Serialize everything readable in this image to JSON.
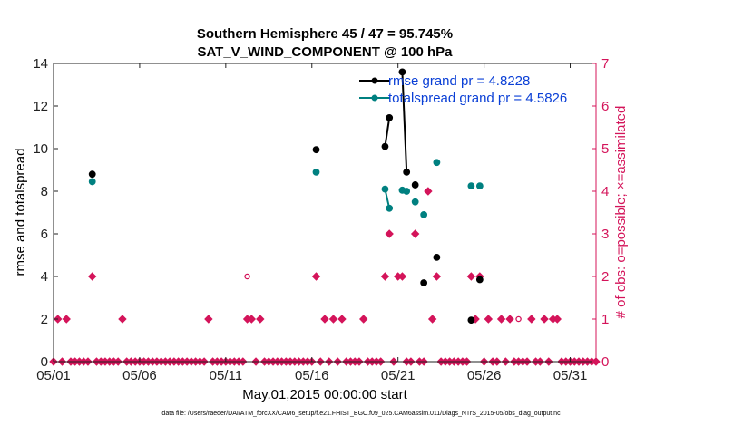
{
  "chart_data": {
    "type": "scatter",
    "title": [
      "Southern Hemisphere 45 / 47 = 95.745%",
      "SAT_V_WIND_COMPONENT @ 100 hPa"
    ],
    "xlabel": "May.01,2015 00:00:00 start",
    "ylabel_left": "rmse and totalspread",
    "ylabel_right": "# of obs: o=possible; ×=assimilated",
    "footnote": "data file: /Users/raeder/DAI/ATM_forcXX/CAM6_setup/f.e21.FHIST_BGC.f09_025.CAM6assim.011/Diags_NTrS_2015-05/obs_diag_output.nc",
    "xlim": [
      0,
      31.5
    ],
    "ylim_left": [
      0,
      14
    ],
    "ylim_right": [
      0,
      7
    ],
    "x_ticks": [
      {
        "value": 0,
        "label": "05/01"
      },
      {
        "value": 5,
        "label": "05/06"
      },
      {
        "value": 10,
        "label": "05/11"
      },
      {
        "value": 15,
        "label": "05/16"
      },
      {
        "value": 20,
        "label": "05/21"
      },
      {
        "value": 25,
        "label": "05/26"
      },
      {
        "value": 30,
        "label": "05/31"
      }
    ],
    "y_ticks_left": [
      "0",
      "2",
      "4",
      "6",
      "8",
      "10",
      "12",
      "14"
    ],
    "y_ticks_right": [
      "0",
      "1",
      "2",
      "3",
      "4",
      "5",
      "6",
      "7"
    ],
    "colors": {
      "rmse": "#000000",
      "spread": "#008080",
      "obs": "#d4145a",
      "legend_text": "#0a3fd6"
    },
    "legend": [
      {
        "name": "rmse grand pr = 4.8228",
        "series": "rmse"
      },
      {
        "name": "totalspread grand pr = 4.5826",
        "series": "spread"
      }
    ],
    "series": [
      {
        "name": "rmse",
        "axis": "left",
        "points": [
          [
            2.25,
            8.8
          ],
          [
            15.25,
            9.95
          ],
          [
            19.25,
            10.1
          ],
          [
            19.5,
            11.45
          ],
          [
            20.25,
            13.6
          ],
          [
            20.5,
            8.9
          ],
          [
            21.0,
            8.3
          ],
          [
            21.5,
            3.7
          ],
          [
            22.25,
            4.9
          ],
          [
            24.25,
            1.95
          ],
          [
            24.75,
            3.85
          ]
        ],
        "segments": [
          [
            [
              19.25,
              10.1
            ],
            [
              19.5,
              11.45
            ]
          ],
          [
            [
              20.25,
              13.6
            ],
            [
              20.5,
              8.9
            ]
          ]
        ]
      },
      {
        "name": "totalspread",
        "axis": "left",
        "points": [
          [
            2.25,
            8.45
          ],
          [
            15.25,
            8.9
          ],
          [
            19.25,
            8.1
          ],
          [
            19.5,
            7.2
          ],
          [
            20.25,
            8.05
          ],
          [
            20.5,
            8.0
          ],
          [
            21.0,
            7.5
          ],
          [
            21.5,
            6.9
          ],
          [
            22.25,
            9.35
          ],
          [
            24.25,
            8.25
          ],
          [
            24.75,
            8.25
          ]
        ],
        "segments": [
          [
            [
              19.25,
              8.1
            ],
            [
              19.5,
              7.2
            ]
          ],
          [
            [
              20.25,
              8.05
            ],
            [
              20.5,
              8.0
            ]
          ]
        ]
      },
      {
        "name": "obs assimilated",
        "axis": "right",
        "marker": "x",
        "points": [
          [
            0,
            0
          ],
          [
            0.25,
            1
          ],
          [
            0.5,
            0
          ],
          [
            0.75,
            1
          ],
          [
            1,
            0
          ],
          [
            1.25,
            0
          ],
          [
            1.5,
            0
          ],
          [
            1.75,
            0
          ],
          [
            2,
            0
          ],
          [
            2.25,
            2
          ],
          [
            2.5,
            0
          ],
          [
            2.75,
            0
          ],
          [
            3,
            0
          ],
          [
            3.25,
            0
          ],
          [
            3.5,
            0
          ],
          [
            3.75,
            0
          ],
          [
            4,
            1
          ],
          [
            4.25,
            0
          ],
          [
            4.5,
            0
          ],
          [
            4.75,
            0
          ],
          [
            5,
            0
          ],
          [
            5.25,
            0
          ],
          [
            5.5,
            0
          ],
          [
            5.75,
            0
          ],
          [
            6,
            0
          ],
          [
            6.25,
            0
          ],
          [
            6.5,
            0
          ],
          [
            6.75,
            0
          ],
          [
            7,
            0
          ],
          [
            7.25,
            0
          ],
          [
            7.5,
            0
          ],
          [
            7.75,
            0
          ],
          [
            8,
            0
          ],
          [
            8.25,
            0
          ],
          [
            8.5,
            0
          ],
          [
            8.75,
            0
          ],
          [
            9,
            1
          ],
          [
            9.25,
            0
          ],
          [
            9.5,
            0
          ],
          [
            9.75,
            0
          ],
          [
            10,
            0
          ],
          [
            10.25,
            0
          ],
          [
            10.5,
            0
          ],
          [
            10.75,
            0
          ],
          [
            11,
            0
          ],
          [
            11.25,
            1
          ],
          [
            11.5,
            1
          ],
          [
            11.75,
            0
          ],
          [
            12,
            1
          ],
          [
            12.25,
            0
          ],
          [
            12.5,
            0
          ],
          [
            12.75,
            0
          ],
          [
            13,
            0
          ],
          [
            13.25,
            0
          ],
          [
            13.5,
            0
          ],
          [
            13.75,
            0
          ],
          [
            14,
            0
          ],
          [
            14.25,
            0
          ],
          [
            14.5,
            0
          ],
          [
            14.75,
            0
          ],
          [
            15,
            0
          ],
          [
            15.25,
            2
          ],
          [
            15.5,
            0
          ],
          [
            15.75,
            1
          ],
          [
            16,
            0
          ],
          [
            16.25,
            1
          ],
          [
            16.5,
            0
          ],
          [
            16.75,
            1
          ],
          [
            17,
            0
          ],
          [
            17.25,
            0
          ],
          [
            17.5,
            0
          ],
          [
            17.75,
            0
          ],
          [
            18,
            1
          ],
          [
            18.25,
            0
          ],
          [
            18.5,
            0
          ],
          [
            18.75,
            0
          ],
          [
            19,
            0
          ],
          [
            19.25,
            2
          ],
          [
            19.5,
            3
          ],
          [
            19.75,
            0
          ],
          [
            20,
            2
          ],
          [
            20.25,
            2
          ],
          [
            20.5,
            0
          ],
          [
            20.75,
            0
          ],
          [
            21,
            3
          ],
          [
            21.25,
            0
          ],
          [
            21.5,
            0
          ],
          [
            21.75,
            4
          ],
          [
            22,
            1
          ],
          [
            22.25,
            2
          ],
          [
            22.5,
            0
          ],
          [
            22.75,
            0
          ],
          [
            23,
            0
          ],
          [
            23.25,
            0
          ],
          [
            23.5,
            0
          ],
          [
            23.75,
            0
          ],
          [
            24,
            0
          ],
          [
            24.25,
            2
          ],
          [
            24.5,
            1
          ],
          [
            24.75,
            2
          ],
          [
            25,
            0
          ],
          [
            25.25,
            1
          ],
          [
            25.5,
            0
          ],
          [
            25.75,
            0
          ],
          [
            26,
            1
          ],
          [
            26.25,
            0
          ],
          [
            26.5,
            1
          ],
          [
            26.75,
            0
          ],
          [
            27,
            0
          ],
          [
            27.25,
            0
          ],
          [
            27.5,
            0
          ],
          [
            27.75,
            1
          ],
          [
            28,
            0
          ],
          [
            28.25,
            0
          ],
          [
            28.5,
            1
          ],
          [
            28.75,
            0
          ],
          [
            29,
            1
          ],
          [
            29.25,
            1
          ],
          [
            29.5,
            0
          ],
          [
            29.75,
            0
          ],
          [
            30,
            0
          ],
          [
            30.25,
            0
          ],
          [
            30.5,
            0
          ],
          [
            30.75,
            0
          ],
          [
            31,
            0
          ],
          [
            31.25,
            0
          ],
          [
            31.5,
            0
          ]
        ]
      },
      {
        "name": "obs possible",
        "axis": "right",
        "marker": "o",
        "points": [
          [
            11.25,
            2
          ],
          [
            27.0,
            1
          ]
        ]
      }
    ]
  }
}
